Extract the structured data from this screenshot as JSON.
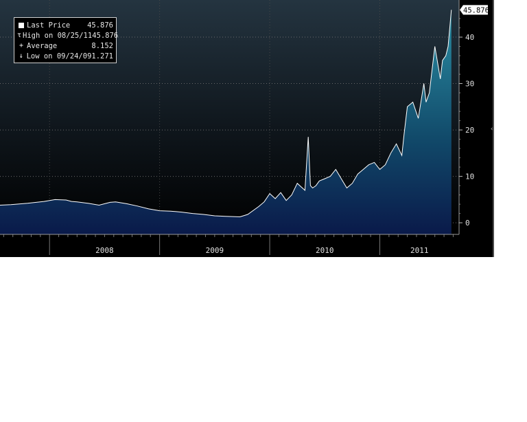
{
  "chart_data": {
    "type": "area",
    "colors": {
      "background": "#000000",
      "line": "#ffffff",
      "area_top": "#2a8aa0",
      "area_bottom": "#0a1a4a",
      "grid": "#6a6a6a",
      "text": "#e0e0e0"
    },
    "ylim": [
      -2.5,
      48
    ],
    "yticks": [
      0,
      10,
      20,
      30,
      40
    ],
    "ytick_labels": [
      "0",
      "10",
      "20",
      "30",
      "40"
    ],
    "year_labels": [
      "2008",
      "2009",
      "2010",
      "2011"
    ],
    "last_value_label": "45.876",
    "grid": true,
    "legend": {
      "position": "top-left",
      "entries": [
        {
          "symbol": "square-icon",
          "label": "Last Price",
          "value": "45.876"
        },
        {
          "symbol": "high-marker-icon",
          "label": "High on 08/25/11",
          "value": "45.876"
        },
        {
          "symbol": "average-marker-icon",
          "label": "Average",
          "value": "8.152"
        },
        {
          "symbol": "low-marker-icon",
          "label": "Low on 09/24/09",
          "value": "1.271"
        }
      ]
    },
    "series": [
      {
        "x": [
          2007.55,
          2007.65,
          2007.8,
          2007.95,
          2008.05,
          2008.15,
          2008.2,
          2008.25,
          2008.35,
          2008.45,
          2008.55,
          2008.6,
          2008.7,
          2008.8,
          2008.9,
          2009.0,
          2009.1,
          2009.2,
          2009.3,
          2009.4,
          2009.5,
          2009.6,
          2009.73,
          2009.8,
          2009.9,
          2009.95,
          2010.0,
          2010.05,
          2010.1,
          2010.15,
          2010.2,
          2010.25,
          2010.32,
          2010.35,
          2010.37,
          2010.39,
          2010.42,
          2010.45,
          2010.5,
          2010.55,
          2010.6,
          2010.65,
          2010.7,
          2010.75,
          2010.8,
          2010.85,
          2010.9,
          2010.95,
          2011.0,
          2011.05,
          2011.1,
          2011.15,
          2011.2,
          2011.22,
          2011.25,
          2011.3,
          2011.35,
          2011.4,
          2011.42,
          2011.45,
          2011.5,
          2011.55,
          2011.57,
          2011.6,
          2011.62,
          2011.65
        ],
        "values": [
          3.8,
          3.9,
          4.2,
          4.6,
          5.0,
          4.9,
          4.6,
          4.5,
          4.2,
          3.8,
          4.4,
          4.5,
          4.1,
          3.6,
          3.0,
          2.6,
          2.5,
          2.3,
          2.0,
          1.8,
          1.5,
          1.4,
          1.271,
          1.8,
          3.5,
          4.5,
          6.3,
          5.2,
          6.5,
          4.8,
          6.0,
          8.5,
          7.0,
          18.5,
          8.0,
          7.5,
          8.0,
          9.0,
          9.5,
          10.0,
          11.5,
          9.5,
          7.5,
          8.5,
          10.5,
          11.5,
          12.5,
          13.0,
          11.5,
          12.5,
          15.0,
          17.0,
          14.5,
          19.0,
          25.0,
          26.0,
          22.5,
          30.0,
          26.0,
          28.0,
          38.0,
          31.0,
          35.0,
          36.0,
          38.0,
          45.876
        ]
      }
    ]
  }
}
